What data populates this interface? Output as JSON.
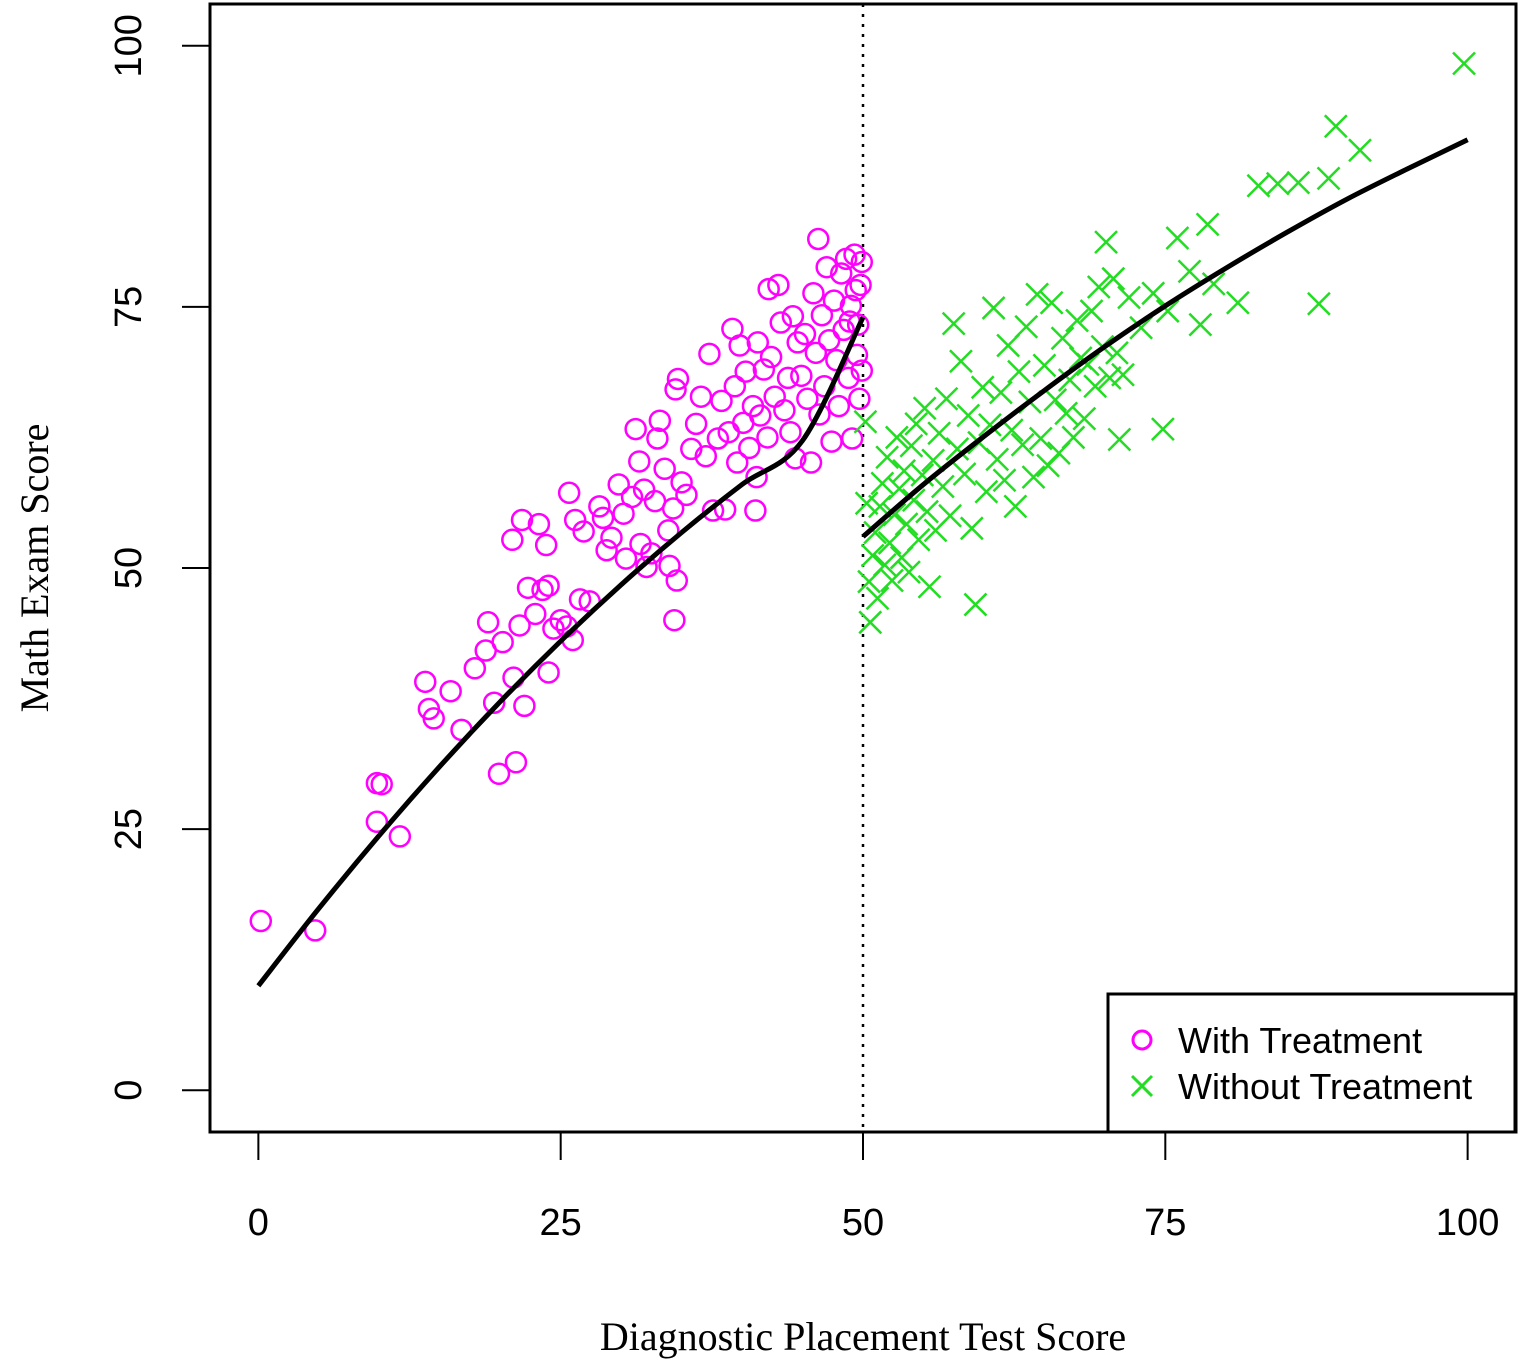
{
  "chart_data": {
    "type": "scatter",
    "title": "",
    "xlabel": "Diagnostic Placement Test Score",
    "ylabel": "Math Exam Score",
    "xlim": [
      -4,
      104
    ],
    "ylim": [
      -4,
      104
    ],
    "xticks": [
      "0",
      "25",
      "50",
      "75",
      "100"
    ],
    "yticks": [
      "0",
      "25",
      "50",
      "75",
      "100"
    ],
    "cutoff": 50,
    "legend": {
      "placement": "bottom-right"
    },
    "series": [
      {
        "name": "With Treatment",
        "marker": "circle",
        "color": "#ff00ff",
        "points": [
          [
            0.2,
            16.2
          ],
          [
            4.7,
            15.3
          ],
          [
            9.8,
            29.4
          ],
          [
            10.2,
            29.3
          ],
          [
            9.8,
            25.7
          ],
          [
            11.7,
            24.3
          ],
          [
            13.8,
            39.1
          ],
          [
            14.1,
            36.5
          ],
          [
            14.5,
            35.6
          ],
          [
            15.9,
            38.2
          ],
          [
            16.8,
            34.5
          ],
          [
            17.9,
            40.4
          ],
          [
            18.8,
            42.1
          ],
          [
            19.0,
            44.8
          ],
          [
            19.5,
            37.1
          ],
          [
            19.9,
            30.3
          ],
          [
            20.2,
            42.9
          ],
          [
            21.1,
            39.5
          ],
          [
            21.3,
            31.4
          ],
          [
            21.6,
            44.5
          ],
          [
            21.0,
            52.7
          ],
          [
            21.8,
            54.6
          ],
          [
            22.0,
            36.8
          ],
          [
            22.3,
            48.1
          ],
          [
            22.9,
            45.6
          ],
          [
            23.2,
            54.2
          ],
          [
            23.5,
            47.9
          ],
          [
            23.8,
            52.2
          ],
          [
            24.0,
            48.3
          ],
          [
            24.0,
            40.0
          ],
          [
            24.4,
            44.2
          ],
          [
            25.0,
            45.0
          ],
          [
            25.5,
            44.4
          ],
          [
            25.7,
            57.2
          ],
          [
            26.0,
            43.1
          ],
          [
            26.2,
            54.6
          ],
          [
            26.6,
            47.0
          ],
          [
            26.9,
            53.5
          ],
          [
            27.4,
            46.8
          ],
          [
            28.2,
            55.9
          ],
          [
            28.5,
            54.8
          ],
          [
            28.8,
            51.7
          ],
          [
            29.2,
            52.9
          ],
          [
            29.8,
            58.0
          ],
          [
            30.2,
            55.2
          ],
          [
            30.4,
            50.9
          ],
          [
            30.9,
            56.8
          ],
          [
            31.2,
            63.3
          ],
          [
            31.5,
            60.2
          ],
          [
            31.9,
            57.5
          ],
          [
            31.6,
            52.3
          ],
          [
            32.1,
            50.1
          ],
          [
            32.5,
            51.4
          ],
          [
            32.8,
            56.4
          ],
          [
            33.0,
            62.4
          ],
          [
            33.2,
            64.1
          ],
          [
            33.6,
            59.5
          ],
          [
            33.9,
            53.6
          ],
          [
            34.0,
            50.2
          ],
          [
            34.3,
            55.7
          ],
          [
            34.4,
            45.0
          ],
          [
            34.6,
            48.8
          ],
          [
            34.5,
            67.1
          ],
          [
            34.7,
            68.1
          ],
          [
            35.0,
            58.2
          ],
          [
            35.4,
            57.0
          ],
          [
            35.8,
            61.4
          ],
          [
            36.2,
            63.8
          ],
          [
            36.6,
            66.4
          ],
          [
            37.0,
            60.7
          ],
          [
            37.3,
            70.5
          ],
          [
            37.6,
            55.5
          ],
          [
            38.0,
            62.4
          ],
          [
            38.3,
            66.0
          ],
          [
            38.6,
            55.6
          ],
          [
            38.9,
            63.0
          ],
          [
            39.2,
            72.9
          ],
          [
            39.4,
            67.4
          ],
          [
            39.6,
            60.1
          ],
          [
            39.8,
            71.3
          ],
          [
            40.1,
            63.9
          ],
          [
            40.3,
            68.8
          ],
          [
            40.6,
            61.5
          ],
          [
            40.9,
            65.5
          ],
          [
            41.1,
            55.5
          ],
          [
            41.2,
            58.7
          ],
          [
            41.3,
            71.6
          ],
          [
            41.5,
            64.6
          ],
          [
            41.8,
            69.0
          ],
          [
            42.1,
            62.5
          ],
          [
            42.2,
            76.7
          ],
          [
            42.4,
            70.2
          ],
          [
            42.7,
            66.4
          ],
          [
            43.0,
            77.1
          ],
          [
            43.2,
            73.5
          ],
          [
            43.5,
            65.1
          ],
          [
            43.8,
            68.2
          ],
          [
            44.0,
            63.0
          ],
          [
            44.2,
            74.1
          ],
          [
            44.4,
            60.5
          ],
          [
            44.6,
            71.6
          ],
          [
            44.9,
            68.4
          ],
          [
            45.2,
            72.4
          ],
          [
            45.4,
            66.2
          ],
          [
            45.7,
            60.1
          ],
          [
            45.9,
            76.3
          ],
          [
            46.1,
            70.6
          ],
          [
            46.3,
            81.5
          ],
          [
            46.4,
            64.7
          ],
          [
            46.6,
            74.2
          ],
          [
            46.8,
            67.4
          ],
          [
            47.0,
            78.8
          ],
          [
            47.2,
            71.8
          ],
          [
            47.4,
            62.1
          ],
          [
            47.6,
            75.6
          ],
          [
            47.8,
            69.9
          ],
          [
            48.0,
            65.5
          ],
          [
            48.2,
            78.2
          ],
          [
            48.4,
            72.8
          ],
          [
            48.6,
            79.6
          ],
          [
            48.8,
            68.2
          ],
          [
            49.0,
            75.1
          ],
          [
            49.1,
            62.4
          ],
          [
            49.3,
            80.0
          ],
          [
            49.5,
            70.4
          ],
          [
            49.6,
            73.3
          ],
          [
            49.8,
            77.1
          ],
          [
            49.9,
            68.9
          ],
          [
            49.9,
            79.3
          ],
          [
            49.7,
            66.2
          ],
          [
            49.4,
            76.6
          ],
          [
            48.9,
            73.6
          ]
        ]
      },
      {
        "name": "Without Treatment",
        "marker": "x",
        "color": "#22dd22",
        "points": [
          [
            50.2,
            64.0
          ],
          [
            50.3,
            56.2
          ],
          [
            50.5,
            48.7
          ],
          [
            50.6,
            44.8
          ],
          [
            50.8,
            51.2
          ],
          [
            51.0,
            53.4
          ],
          [
            51.2,
            47.1
          ],
          [
            51.4,
            55.9
          ],
          [
            51.6,
            58.1
          ],
          [
            51.8,
            50.3
          ],
          [
            52.0,
            60.6
          ],
          [
            52.2,
            52.4
          ],
          [
            52.4,
            48.8
          ],
          [
            52.6,
            55.1
          ],
          [
            52.8,
            62.5
          ],
          [
            53.0,
            57.6
          ],
          [
            53.2,
            51.0
          ],
          [
            53.4,
            59.3
          ],
          [
            53.6,
            54.2
          ],
          [
            53.8,
            49.6
          ],
          [
            54.0,
            61.7
          ],
          [
            54.2,
            56.5
          ],
          [
            54.4,
            63.8
          ],
          [
            54.6,
            52.7
          ],
          [
            54.9,
            58.9
          ],
          [
            55.1,
            65.3
          ],
          [
            55.3,
            55.4
          ],
          [
            55.5,
            48.2
          ],
          [
            55.8,
            60.3
          ],
          [
            56.0,
            53.6
          ],
          [
            56.3,
            62.9
          ],
          [
            56.6,
            57.8
          ],
          [
            56.9,
            66.2
          ],
          [
            57.2,
            55.0
          ],
          [
            57.5,
            73.4
          ],
          [
            57.8,
            61.4
          ],
          [
            58.1,
            69.8
          ],
          [
            58.4,
            59.0
          ],
          [
            58.7,
            64.6
          ],
          [
            59.0,
            53.8
          ],
          [
            59.3,
            46.5
          ],
          [
            59.6,
            62.0
          ],
          [
            59.9,
            67.3
          ],
          [
            60.2,
            57.3
          ],
          [
            60.5,
            63.7
          ],
          [
            60.8,
            74.9
          ],
          [
            61.1,
            60.4
          ],
          [
            61.4,
            66.8
          ],
          [
            61.7,
            58.4
          ],
          [
            62.0,
            71.3
          ],
          [
            62.3,
            63.2
          ],
          [
            62.6,
            55.9
          ],
          [
            62.9,
            68.8
          ],
          [
            63.2,
            61.8
          ],
          [
            63.5,
            73.1
          ],
          [
            63.8,
            65.9
          ],
          [
            64.1,
            58.7
          ],
          [
            64.4,
            76.2
          ],
          [
            64.7,
            62.4
          ],
          [
            65.0,
            69.4
          ],
          [
            65.3,
            59.8
          ],
          [
            65.6,
            75.4
          ],
          [
            65.9,
            66.1
          ],
          [
            66.2,
            61.0
          ],
          [
            66.5,
            72.0
          ],
          [
            66.8,
            64.8
          ],
          [
            67.1,
            68.0
          ],
          [
            67.4,
            62.5
          ],
          [
            67.7,
            73.7
          ],
          [
            68.0,
            70.1
          ],
          [
            68.3,
            64.3
          ],
          [
            68.6,
            69.5
          ],
          [
            68.9,
            74.6
          ],
          [
            69.2,
            67.4
          ],
          [
            69.5,
            76.9
          ],
          [
            69.8,
            71.2
          ],
          [
            70.1,
            81.2
          ],
          [
            70.4,
            68.2
          ],
          [
            70.7,
            77.7
          ],
          [
            71.0,
            70.6
          ],
          [
            71.2,
            62.3
          ],
          [
            71.5,
            68.5
          ],
          [
            72.0,
            75.9
          ],
          [
            73.0,
            73.0
          ],
          [
            74.0,
            76.3
          ],
          [
            74.8,
            63.3
          ],
          [
            75.2,
            74.6
          ],
          [
            76.0,
            81.6
          ],
          [
            77.0,
            78.4
          ],
          [
            77.9,
            73.3
          ],
          [
            78.5,
            82.9
          ],
          [
            79.0,
            77.2
          ],
          [
            81.0,
            75.4
          ],
          [
            82.7,
            86.6
          ],
          [
            84.3,
            86.8
          ],
          [
            86.0,
            86.9
          ],
          [
            87.7,
            75.3
          ],
          [
            88.5,
            87.3
          ],
          [
            89.1,
            92.3
          ],
          [
            91.1,
            90.0
          ],
          [
            99.7,
            98.3
          ]
        ]
      }
    ],
    "fit_lines": [
      {
        "color": "#000000",
        "x": [
          0,
          5,
          10,
          15,
          20,
          25,
          30,
          35,
          40,
          45,
          50
        ],
        "y": [
          10.0,
          17.4,
          24.4,
          31.0,
          37.2,
          43.0,
          48.4,
          53.4,
          58.0,
          62.2,
          74.0
        ]
      },
      {
        "color": "#000000",
        "x": [
          50,
          55,
          60,
          65,
          70,
          75,
          80,
          85,
          90,
          95,
          100
        ],
        "y": [
          53.0,
          58.0,
          62.6,
          67.0,
          71.2,
          75.1,
          78.7,
          82.1,
          85.3,
          88.2,
          91.0
        ]
      }
    ]
  }
}
